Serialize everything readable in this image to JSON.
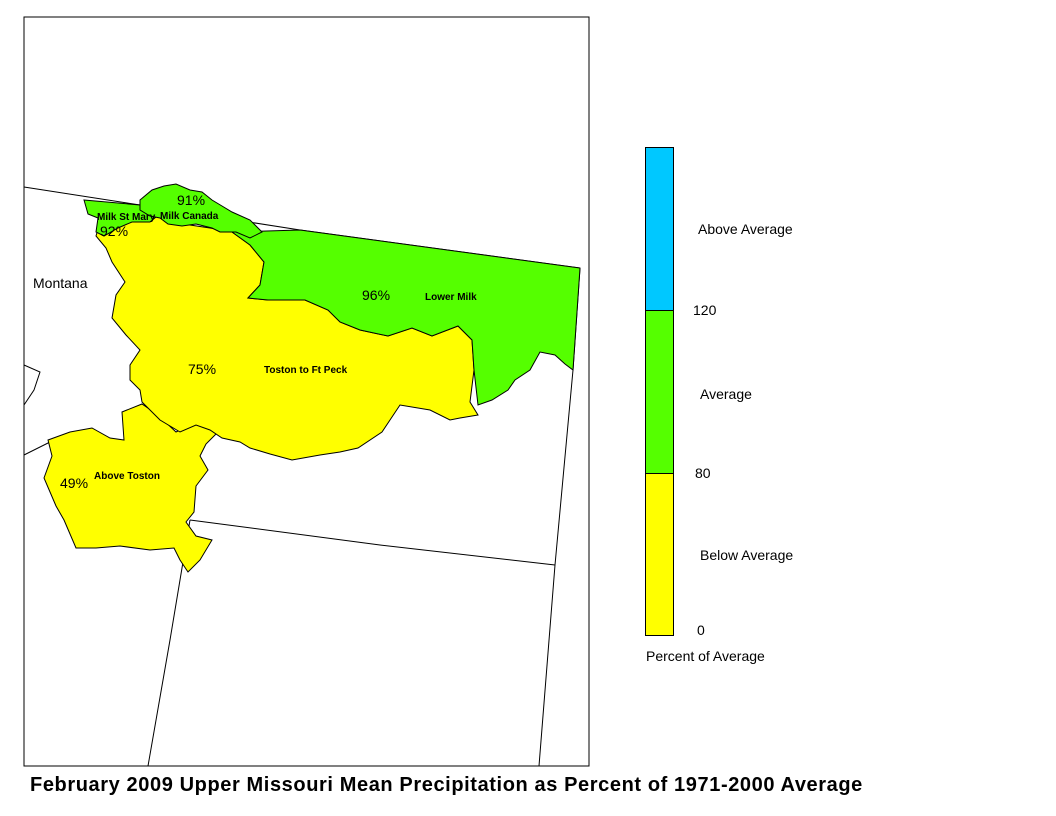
{
  "map": {
    "state_label": "Montana",
    "basins": [
      {
        "name": "Milk St Mary",
        "percent": "92%",
        "category": "average"
      },
      {
        "name": "Milk Canada",
        "percent": "91%",
        "category": "average"
      },
      {
        "name": "Lower Milk",
        "percent": "96%",
        "category": "average"
      },
      {
        "name": "Toston to Ft Peck",
        "percent": "75%",
        "category": "below"
      },
      {
        "name": "Above Toston",
        "percent": "49%",
        "category": "below"
      }
    ]
  },
  "legend": {
    "title": "Percent of Average",
    "categories": [
      {
        "label": "Above Average",
        "color": "#00c8ff"
      },
      {
        "label": "Average",
        "color": "#55ff00"
      },
      {
        "label": "Below Average",
        "color": "#ffff00"
      }
    ],
    "ticks": [
      "120",
      "80",
      "0"
    ]
  },
  "colors": {
    "below": "#ffff00",
    "average": "#55ff00",
    "above": "#00c8ff"
  },
  "title": "February 2009 Upper Missouri Mean Precipitation as Percent of 1971-2000 Average"
}
